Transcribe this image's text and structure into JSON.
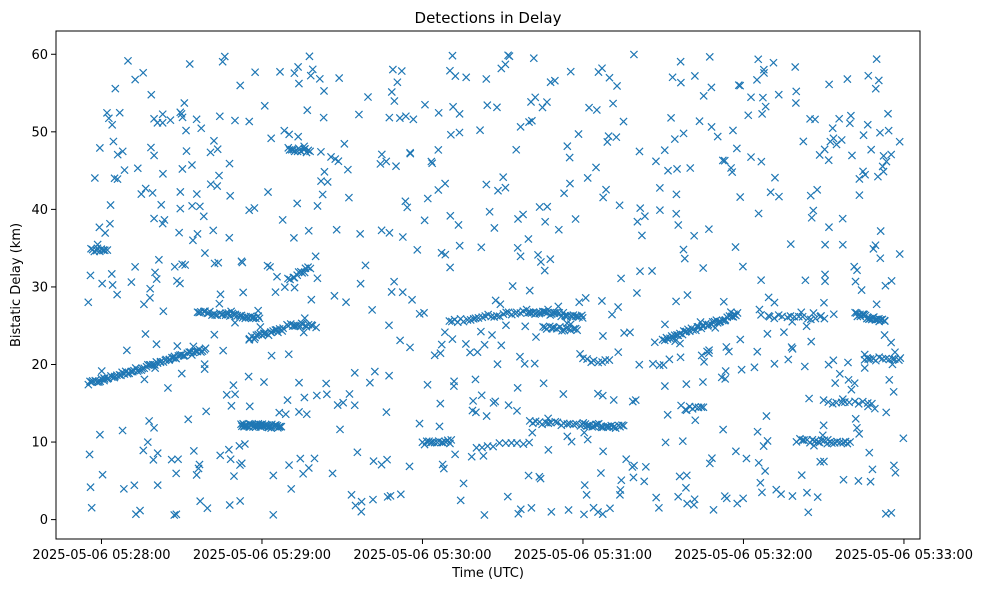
{
  "chart_data": {
    "type": "scatter",
    "title": "Detections in Delay",
    "xlabel": "Time (UTC)",
    "ylabel": "Bistatic Delay (km)",
    "marker": "x",
    "color": "#1f77b4",
    "grid": false,
    "xlim": [
      "2025-05-06 05:27:43",
      "2025-05-06 05:33:06"
    ],
    "ylim": [
      -2.5,
      63
    ],
    "xticks": [
      "2025-05-06 05:28:00",
      "2025-05-06 05:29:00",
      "2025-05-06 05:30:00",
      "2025-05-06 05:31:00",
      "2025-05-06 05:32:00",
      "2025-05-06 05:33:00"
    ],
    "yticks": [
      0,
      10,
      20,
      30,
      40,
      50,
      60
    ],
    "structures": [
      {
        "kind": "track",
        "t0": "2025-05-06 05:27:55",
        "t1": "2025-05-06 05:28:39",
        "y0": 17.5,
        "y1": 22.0,
        "n": 70
      },
      {
        "kind": "track",
        "t0": "2025-05-06 05:28:36",
        "t1": "2025-05-06 05:28:59",
        "y0": 26.8,
        "y1": 26.0,
        "n": 35
      },
      {
        "kind": "track",
        "t0": "2025-05-06 05:28:55",
        "t1": "2025-05-06 05:29:08",
        "y0": 23.3,
        "y1": 24.5,
        "n": 22
      },
      {
        "kind": "track",
        "t0": "2025-05-06 05:28:52",
        "t1": "2025-05-06 05:29:07",
        "y0": 12.2,
        "y1": 12.0,
        "n": 40
      },
      {
        "kind": "track",
        "t0": "2025-05-06 05:29:10",
        "t1": "2025-05-06 05:29:18",
        "y0": 31.0,
        "y1": 32.5,
        "n": 12
      },
      {
        "kind": "track",
        "t0": "2025-05-06 05:29:10",
        "t1": "2025-05-06 05:29:19",
        "y0": 25.2,
        "y1": 25.0,
        "n": 14
      },
      {
        "kind": "track",
        "t0": "2025-05-06 05:29:10",
        "t1": "2025-05-06 05:29:18",
        "y0": 47.8,
        "y1": 47.5,
        "n": 14
      },
      {
        "kind": "track",
        "t0": "2025-05-06 05:30:00",
        "t1": "2025-05-06 05:30:10",
        "y0": 9.9,
        "y1": 10.0,
        "n": 14
      },
      {
        "kind": "track",
        "t0": "2025-05-06 05:30:10",
        "t1": "2025-05-06 05:30:40",
        "y0": 25.5,
        "y1": 27.0,
        "n": 28
      },
      {
        "kind": "track",
        "t0": "2025-05-06 05:30:20",
        "t1": "2025-05-06 05:30:40",
        "y0": 9.5,
        "y1": 9.8,
        "n": 10
      },
      {
        "kind": "track",
        "t0": "2025-05-06 05:30:40",
        "t1": "2025-05-06 05:31:00",
        "y0": 26.8,
        "y1": 26.2,
        "n": 30
      },
      {
        "kind": "track",
        "t0": "2025-05-06 05:30:45",
        "t1": "2025-05-06 05:30:58",
        "y0": 24.7,
        "y1": 24.5,
        "n": 16
      },
      {
        "kind": "track",
        "t0": "2025-05-06 05:30:40",
        "t1": "2025-05-06 05:31:00",
        "y0": 12.5,
        "y1": 12.3,
        "n": 18
      },
      {
        "kind": "track",
        "t0": "2025-05-06 05:31:00",
        "t1": "2025-05-06 05:31:15",
        "y0": 12.2,
        "y1": 12.0,
        "n": 24
      },
      {
        "kind": "track",
        "t0": "2025-05-06 05:31:00",
        "t1": "2025-05-06 05:31:10",
        "y0": 20.6,
        "y1": 20.4,
        "n": 8
      },
      {
        "kind": "track",
        "t0": "2025-05-06 05:31:30",
        "t1": "2025-05-06 05:31:58",
        "y0": 23.2,
        "y1": 26.5,
        "n": 45
      },
      {
        "kind": "track",
        "t0": "2025-05-06 05:31:38",
        "t1": "2025-05-06 05:31:45",
        "y0": 14.3,
        "y1": 14.6,
        "n": 8
      },
      {
        "kind": "track",
        "t0": "2025-05-06 05:32:10",
        "t1": "2025-05-06 05:32:30",
        "y0": 26.2,
        "y1": 26.0,
        "n": 14
      },
      {
        "kind": "track",
        "t0": "2025-05-06 05:32:20",
        "t1": "2025-05-06 05:32:40",
        "y0": 10.2,
        "y1": 10.0,
        "n": 22
      },
      {
        "kind": "track",
        "t0": "2025-05-06 05:32:42",
        "t1": "2025-05-06 05:32:53",
        "y0": 26.5,
        "y1": 25.5,
        "n": 26
      },
      {
        "kind": "track",
        "t0": "2025-05-06 05:32:45",
        "t1": "2025-05-06 05:32:58",
        "y0": 20.8,
        "y1": 20.6,
        "n": 12
      },
      {
        "kind": "track",
        "t0": "2025-05-06 05:32:30",
        "t1": "2025-05-06 05:32:48",
        "y0": 15.2,
        "y1": 15.0,
        "n": 12
      },
      {
        "kind": "track",
        "t0": "2025-05-06 05:27:56",
        "t1": "2025-05-06 05:28:02",
        "y0": 34.8,
        "y1": 34.7,
        "n": 10
      },
      {
        "kind": "clutter",
        "t0": "2025-05-06 05:27:55",
        "t1": "2025-05-06 05:33:00",
        "y0": 0.5,
        "y1": 60,
        "n": 760
      }
    ]
  }
}
